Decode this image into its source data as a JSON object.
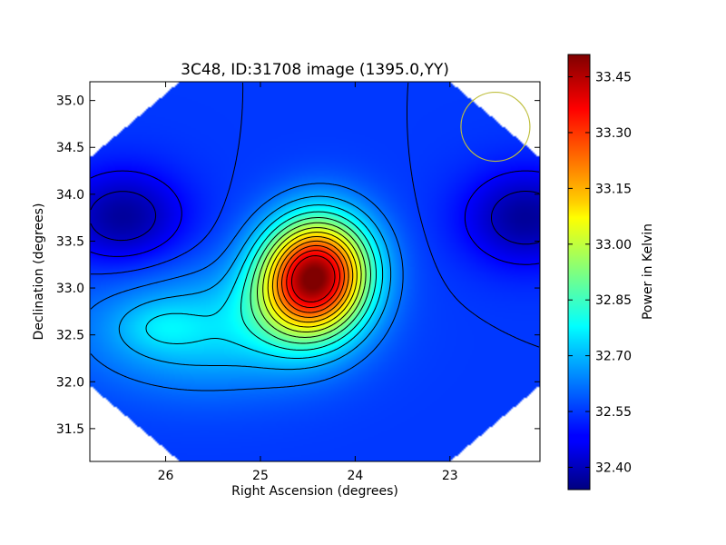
{
  "chart_data": {
    "type": "heatmap",
    "title": "3C48, ID:31708 image (1395.0,YY)",
    "xlabel": "Right Ascension (degrees)",
    "ylabel": "Declination (degrees)",
    "xlim": [
      26.8,
      22.05
    ],
    "ylim": [
      31.15,
      35.2
    ],
    "x_ticks": [
      26,
      25,
      24,
      23
    ],
    "y_ticks": [
      31.5,
      32.0,
      32.5,
      33.0,
      33.5,
      34.0,
      34.5,
      35.0
    ],
    "colorbar": {
      "label": "Power in Kelvin",
      "range": [
        32.34,
        33.51
      ],
      "ticks": [
        32.4,
        32.55,
        32.7,
        32.85,
        33.0,
        33.15,
        33.3,
        33.45
      ],
      "tick_labels": [
        "32.40",
        "32.55",
        "32.70",
        "32.85",
        "33.00",
        "33.15",
        "33.30",
        "33.45"
      ],
      "colormap": "jet"
    },
    "field": {
      "base_level": 32.55,
      "peak": {
        "ra": 24.43,
        "dec": 33.12,
        "value": 33.5
      },
      "secondary_maximum": {
        "ra": 26.05,
        "dec": 32.58,
        "value": 32.77
      },
      "minima": [
        {
          "ra": 26.45,
          "dec": 33.75,
          "value": 32.37
        },
        {
          "ra": 22.2,
          "dec": 33.75,
          "value": 32.37
        }
      ]
    },
    "beam_circle": {
      "ra": 22.52,
      "dec": 34.72,
      "color": "#bfbf3f"
    }
  }
}
